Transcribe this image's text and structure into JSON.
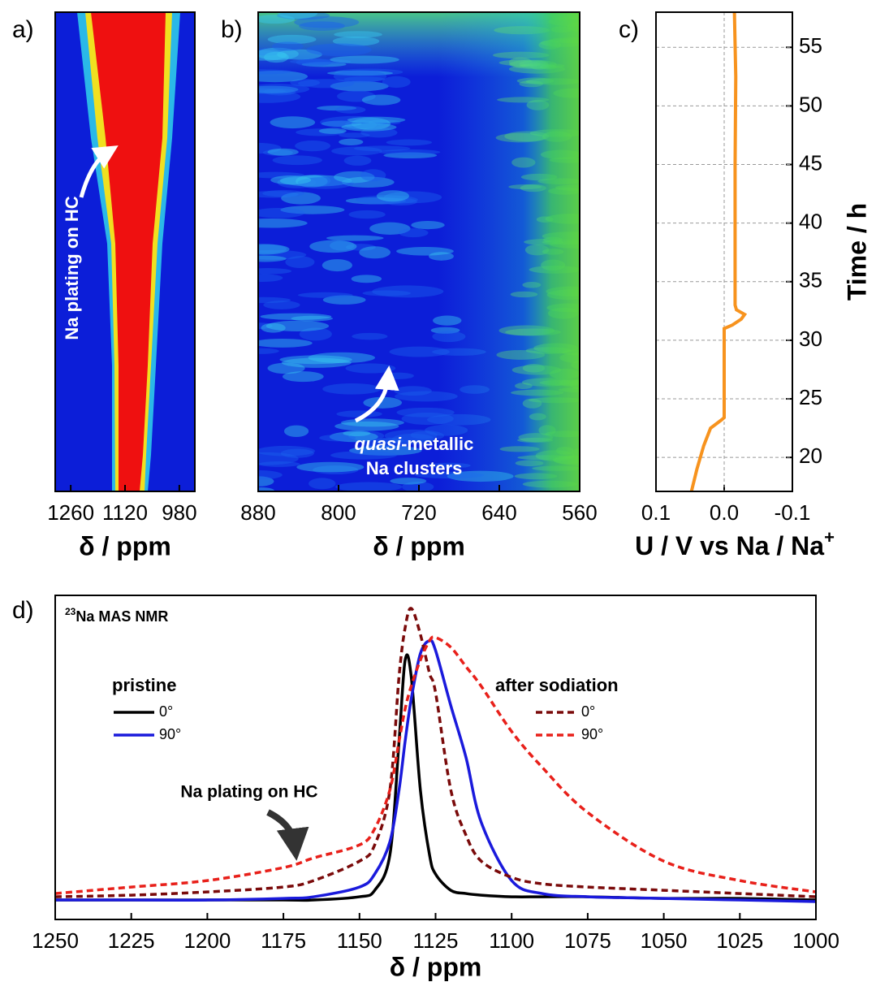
{
  "chart_data": [
    {
      "type": "heatmap",
      "panel": "a)",
      "xlabel": "δ / ppm",
      "xlim": [
        1300,
        940
      ],
      "xticks": [
        1260,
        1120,
        980
      ],
      "annotation": "Na plating on HC"
    },
    {
      "type": "heatmap",
      "panel": "b)",
      "xlabel": "δ / ppm",
      "xlim": [
        880,
        560
      ],
      "xticks": [
        880,
        800,
        720,
        640,
        560
      ],
      "annotation": {
        "emphasis": "quasi",
        "rest": "-metallic",
        "line2": "Na clusters"
      }
    },
    {
      "type": "line",
      "panel": "c)",
      "xlabel": "U / V vs Na / Na",
      "xlabel_sup": "+",
      "ylabel": "Time / h",
      "xlim": [
        0.1,
        -0.1
      ],
      "xticks": [
        {
          "value": 0.1,
          "label": "0.1"
        },
        {
          "value": 0.0,
          "label": "0.0"
        },
        {
          "value": -0.1,
          "label": "-0.1"
        }
      ],
      "ylim": [
        17.1,
        58
      ],
      "yticks": [
        20,
        25,
        30,
        35,
        40,
        45,
        50,
        55
      ],
      "yaxis_side": "right",
      "grid": true,
      "series": [
        {
          "color": "#f7931e",
          "x": [
            0.048,
            0.04,
            0.03,
            0.02,
            0.004,
            0.0,
            0.0,
            -0.012,
            -0.025,
            -0.03,
            -0.018,
            -0.016,
            -0.016,
            -0.017,
            -0.015
          ],
          "y": [
            17.1,
            19,
            21,
            22.5,
            23.2,
            23.4,
            31.0,
            31.3,
            31.8,
            32.2,
            32.6,
            33,
            45,
            52.5,
            58
          ]
        }
      ]
    },
    {
      "type": "line",
      "panel": "d)",
      "label_sup": "23",
      "label": "Na MAS NMR",
      "xlabel": "δ / ppm",
      "xlim": [
        1250,
        1000
      ],
      "xticks": [
        1250,
        1225,
        1200,
        1175,
        1150,
        1125,
        1100,
        1075,
        1050,
        1025,
        1000
      ],
      "ylim": [
        0,
        1
      ],
      "annotation": "Na plating on HC",
      "x": [
        1250,
        1225,
        1200,
        1175,
        1165,
        1150,
        1145,
        1140,
        1137,
        1135,
        1133,
        1130,
        1127,
        1125,
        1120,
        1115,
        1110,
        1100,
        1090,
        1075,
        1050,
        1025,
        1000
      ],
      "series": [
        {
          "group": "pristine",
          "name": "0°",
          "color": "#000000",
          "dash": false,
          "values": [
            0.06,
            0.06,
            0.06,
            0.06,
            0.06,
            0.07,
            0.09,
            0.2,
            0.55,
            0.8,
            0.75,
            0.4,
            0.2,
            0.14,
            0.09,
            0.08,
            0.075,
            0.07,
            0.07,
            0.07,
            0.065,
            0.065,
            0.06
          ]
        },
        {
          "group": "pristine",
          "name": "90°",
          "color": "#1a1adc",
          "dash": false,
          "values": [
            0.06,
            0.06,
            0.06,
            0.065,
            0.07,
            0.1,
            0.14,
            0.24,
            0.4,
            0.55,
            0.68,
            0.82,
            0.86,
            0.83,
            0.66,
            0.5,
            0.3,
            0.12,
            0.08,
            0.07,
            0.065,
            0.06,
            0.055
          ]
        },
        {
          "group": "after sodiation",
          "name": "0°",
          "color": "#7a0a0a",
          "dash": true,
          "values": [
            0.07,
            0.075,
            0.085,
            0.1,
            0.12,
            0.18,
            0.23,
            0.4,
            0.75,
            0.9,
            0.96,
            0.88,
            0.76,
            0.7,
            0.4,
            0.26,
            0.18,
            0.13,
            0.11,
            0.1,
            0.09,
            0.08,
            0.07
          ]
        },
        {
          "group": "after sodiation",
          "name": "90°",
          "color": "#e8201a",
          "dash": true,
          "values": [
            0.08,
            0.1,
            0.12,
            0.16,
            0.19,
            0.23,
            0.28,
            0.4,
            0.55,
            0.65,
            0.72,
            0.8,
            0.86,
            0.87,
            0.84,
            0.78,
            0.72,
            0.58,
            0.47,
            0.33,
            0.18,
            0.12,
            0.085
          ]
        }
      ]
    }
  ]
}
